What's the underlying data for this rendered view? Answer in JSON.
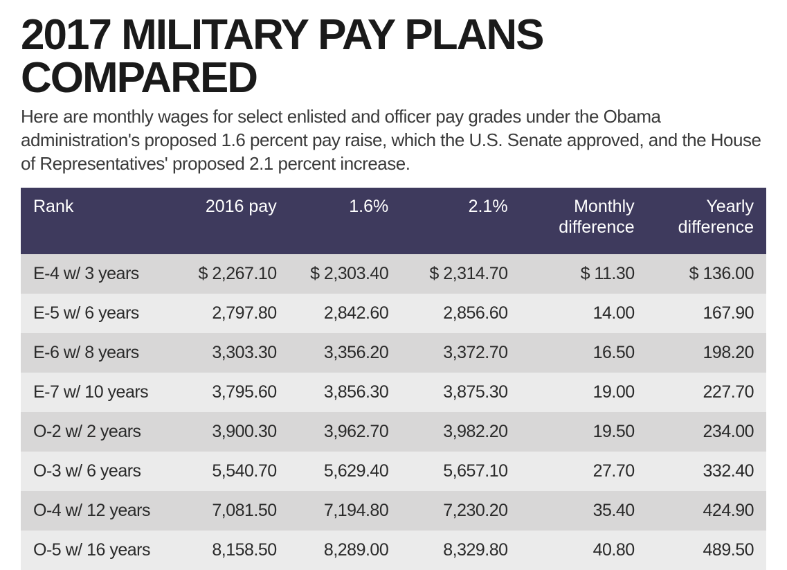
{
  "title": "2017 MILITARY PAY PLANS COMPARED",
  "subtitle": "Here are monthly wages for select enlisted and officer pay grades under the Obama administration's proposed 1.6 percent pay raise, which the U.S. Senate approved, and the House of Representatives' proposed 2.1 percent increase.",
  "table": {
    "columns": [
      {
        "label": "Rank",
        "align": "left"
      },
      {
        "label": "2016 pay",
        "align": "right"
      },
      {
        "label": "1.6%",
        "align": "right"
      },
      {
        "label": "2.1%",
        "align": "right"
      },
      {
        "label": "Monthly difference",
        "align": "right"
      },
      {
        "label": "Yearly difference",
        "align": "right"
      }
    ],
    "rows": [
      {
        "rank": "E-4 w/ 3 years",
        "pay": "$ 2,267.10",
        "p16": "$ 2,303.40",
        "p21": "$ 2,314.70",
        "md": "$ 11.30",
        "yd": "$ 136.00"
      },
      {
        "rank": "E-5 w/ 6 years",
        "pay": "2,797.80",
        "p16": "2,842.60",
        "p21": "2,856.60",
        "md": "14.00",
        "yd": "167.90"
      },
      {
        "rank": "E-6 w/ 8 years",
        "pay": "3,303.30",
        "p16": "3,356.20",
        "p21": "3,372.70",
        "md": "16.50",
        "yd": "198.20"
      },
      {
        "rank": "E-7 w/ 10 years",
        "pay": "3,795.60",
        "p16": "3,856.30",
        "p21": "3,875.30",
        "md": "19.00",
        "yd": "227.70"
      },
      {
        "rank": "O-2 w/ 2 years",
        "pay": "3,900.30",
        "p16": "3,962.70",
        "p21": "3,982.20",
        "md": "19.50",
        "yd": "234.00"
      },
      {
        "rank": "O-3 w/ 6 years",
        "pay": "5,540.70",
        "p16": "5,629.40",
        "p21": "5,657.10",
        "md": "27.70",
        "yd": "332.40"
      },
      {
        "rank": "O-4 w/ 12 years",
        "pay": "7,081.50",
        "p16": "7,194.80",
        "p21": "7,230.20",
        "md": "35.40",
        "yd": "424.90"
      },
      {
        "rank": "O-5 w/ 16 years",
        "pay": "8,158.50",
        "p16": "8,289.00",
        "p21": "8,329.80",
        "md": "40.80",
        "yd": "489.50"
      }
    ],
    "header_bg": "#3e3a5d",
    "header_fg": "#ffffff",
    "row_odd_bg": "#d8d7d7",
    "row_even_bg": "#ebebeb",
    "cell_fg": "#2a2a2a",
    "title_fontsize": 62,
    "subtitle_fontsize": 26,
    "cell_fontsize": 25
  }
}
